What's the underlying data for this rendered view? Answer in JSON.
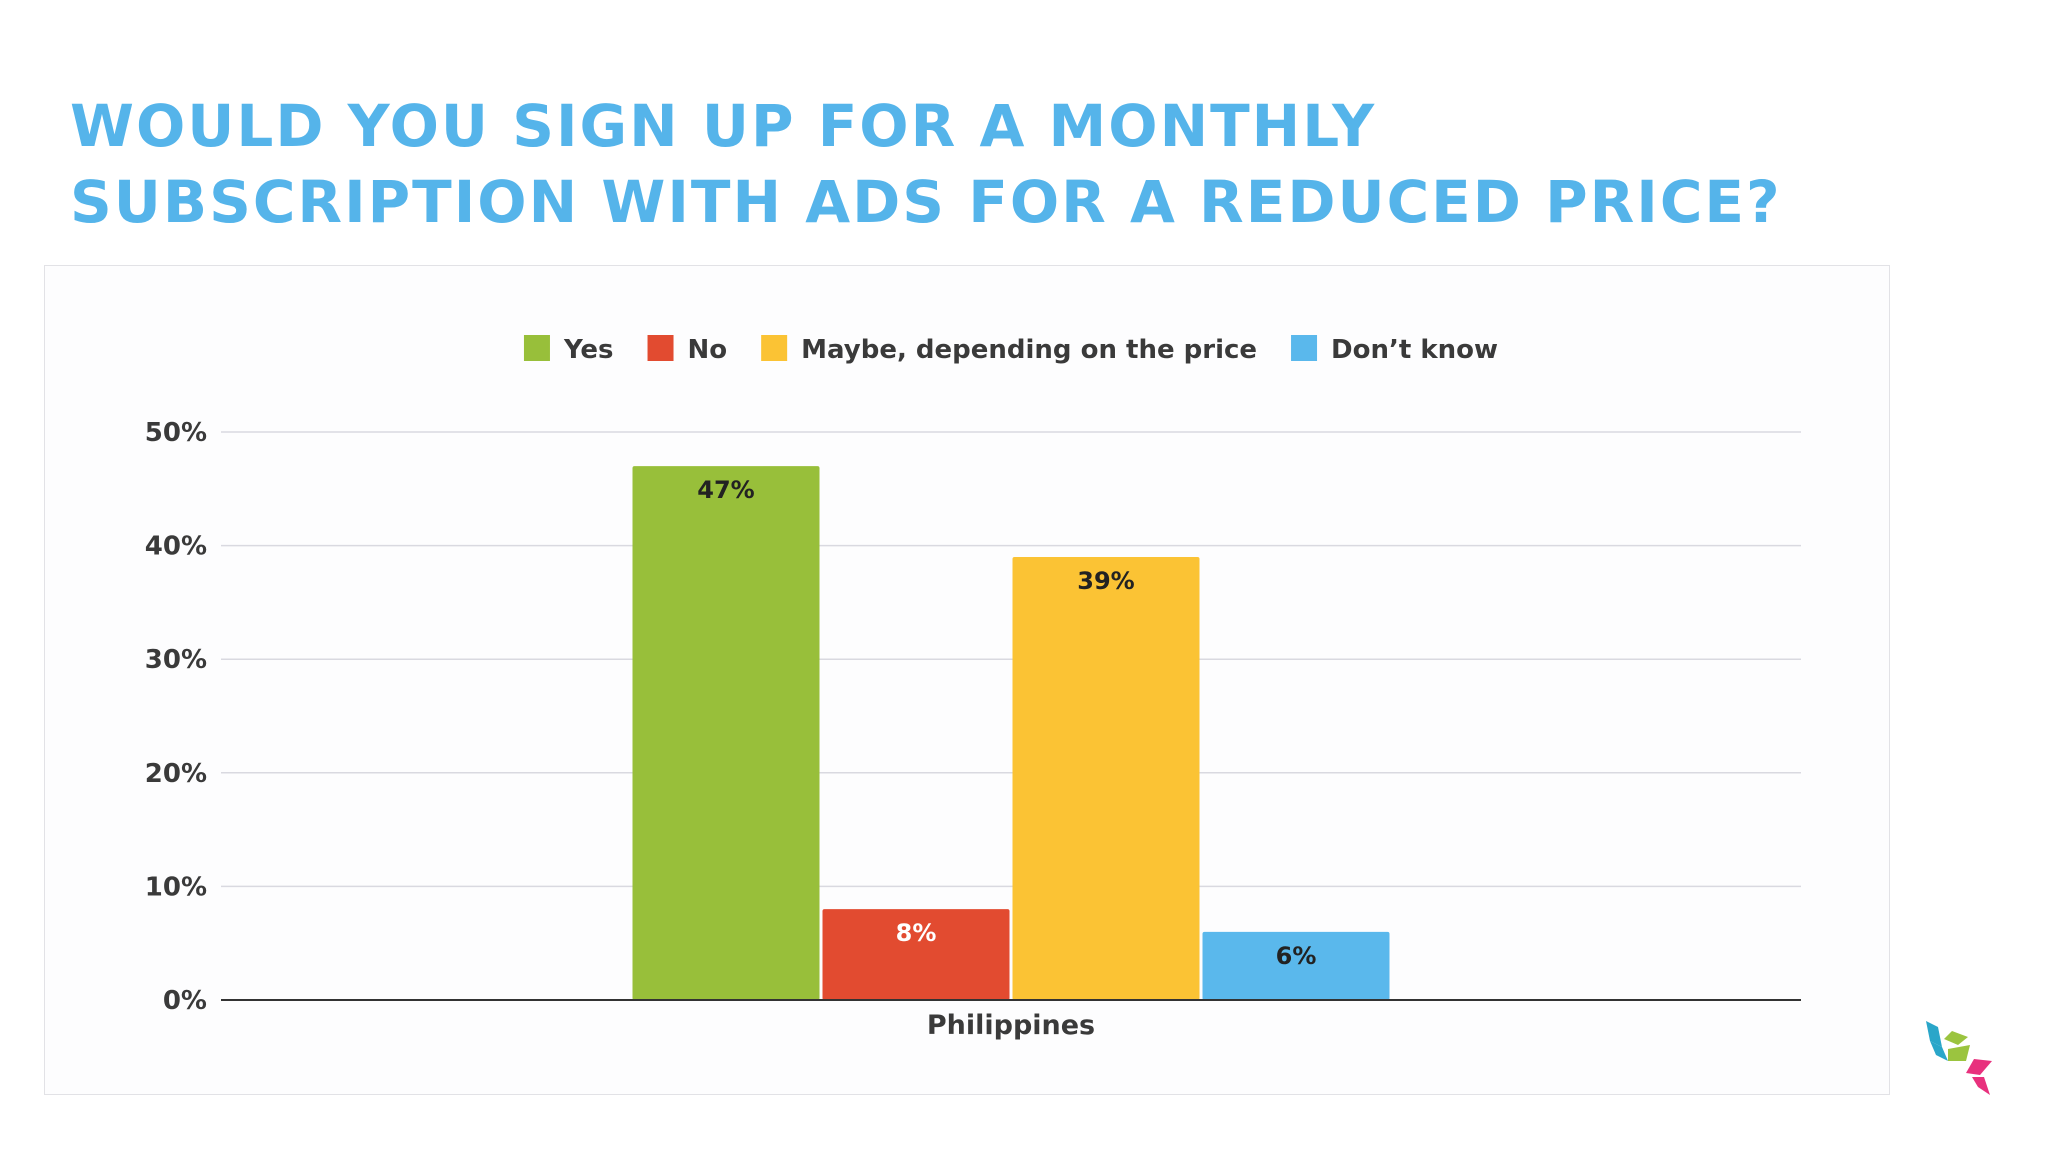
{
  "title_lines": [
    "WOULD YOU SIGN UP FOR A MONTHLY",
    "SUBSCRIPTION WITH ADS FOR A REDUCED PRICE?"
  ],
  "chart_data": {
    "type": "bar",
    "categories": [
      "Philippines"
    ],
    "series": [
      {
        "name": "Yes",
        "values": [
          47
        ],
        "labels": [
          "47%"
        ],
        "color": "#98bf3a",
        "label_color": "#222222"
      },
      {
        "name": "No",
        "values": [
          8
        ],
        "labels": [
          "8%"
        ],
        "color": "#e24b30",
        "label_color": "#ffffff"
      },
      {
        "name": "Maybe, depending on the price",
        "values": [
          39
        ],
        "labels": [
          "39%"
        ],
        "color": "#fbc334",
        "label_color": "#222222"
      },
      {
        "name": "Don’t know",
        "values": [
          6
        ],
        "labels": [
          "6%"
        ],
        "color": "#5ab8ec",
        "label_color": "#222222"
      }
    ],
    "yticks": [
      0,
      10,
      20,
      30,
      40,
      50
    ],
    "ytick_labels": [
      "0%",
      "10%",
      "20%",
      "30%",
      "40%",
      "50%"
    ],
    "ylim": [
      0,
      50
    ],
    "grid": true,
    "legend_position": "top"
  },
  "logo": {
    "icon": "cube-logo-icon",
    "colors": [
      "#2aa6c9",
      "#9bc43f",
      "#e8317d"
    ]
  }
}
